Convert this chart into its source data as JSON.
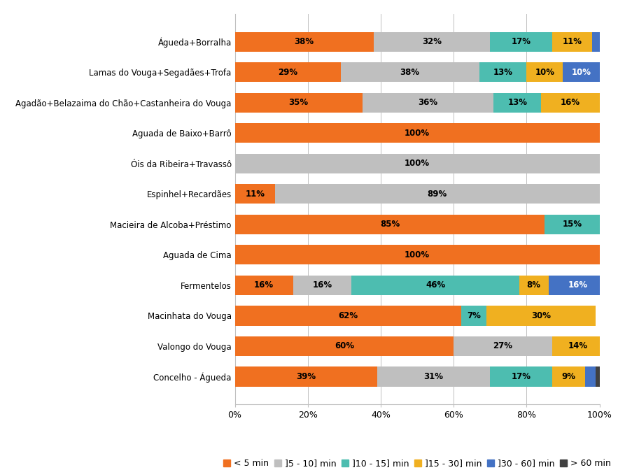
{
  "categories": [
    "Águeda+Borralha",
    "Lamas do Vouga+Segadães+Trofa",
    "Agadão+Belazaima do Chão+Castanheira do Vouga",
    "Aguada de Baixo+Barrô",
    "Óis da Ribeira+Travassô",
    "Espinhel+Recardães",
    "Macieira de Alcoba+Préstimo",
    "Aguada de Cima",
    "Fermentelos",
    "Macinhata do Vouga",
    "Valongo do Vouga",
    "Concelho - Águeda"
  ],
  "series": {
    "< 5 min": [
      38,
      29,
      35,
      100,
      0,
      11,
      85,
      100,
      16,
      62,
      60,
      39
    ],
    "]5 - 10] min": [
      32,
      38,
      36,
      0,
      100,
      89,
      0,
      0,
      16,
      0,
      27,
      31
    ],
    "]10 - 15] min": [
      17,
      13,
      13,
      0,
      0,
      0,
      15,
      0,
      46,
      7,
      0,
      17
    ],
    "]15 - 30] min": [
      11,
      10,
      16,
      0,
      0,
      0,
      0,
      0,
      8,
      30,
      14,
      9
    ],
    "]30 - 60] min": [
      2,
      10,
      0,
      0,
      0,
      0,
      0,
      0,
      16,
      0,
      0,
      3
    ],
    "> 60 min": [
      0,
      0,
      0,
      0,
      0,
      0,
      0,
      0,
      0,
      0,
      0,
      1
    ]
  },
  "colors": {
    "< 5 min": "#F07020",
    "]5 - 10] min": "#BFBFBF",
    "]10 - 15] min": "#4DBDB0",
    "]15 - 30] min": "#F0B020",
    "]30 - 60] min": "#4472C4",
    "> 60 min": "#404040"
  },
  "xlim": [
    0,
    100
  ],
  "xtick_labels": [
    "0%",
    "20%",
    "40%",
    "60%",
    "80%",
    "100%"
  ],
  "xtick_values": [
    0,
    20,
    40,
    60,
    80,
    100
  ],
  "bar_height": 0.65,
  "background_color": "#FFFFFF",
  "label_fontsize": 8.5,
  "ytick_fontsize": 8.5,
  "xtick_fontsize": 9,
  "legend_fontsize": 9
}
